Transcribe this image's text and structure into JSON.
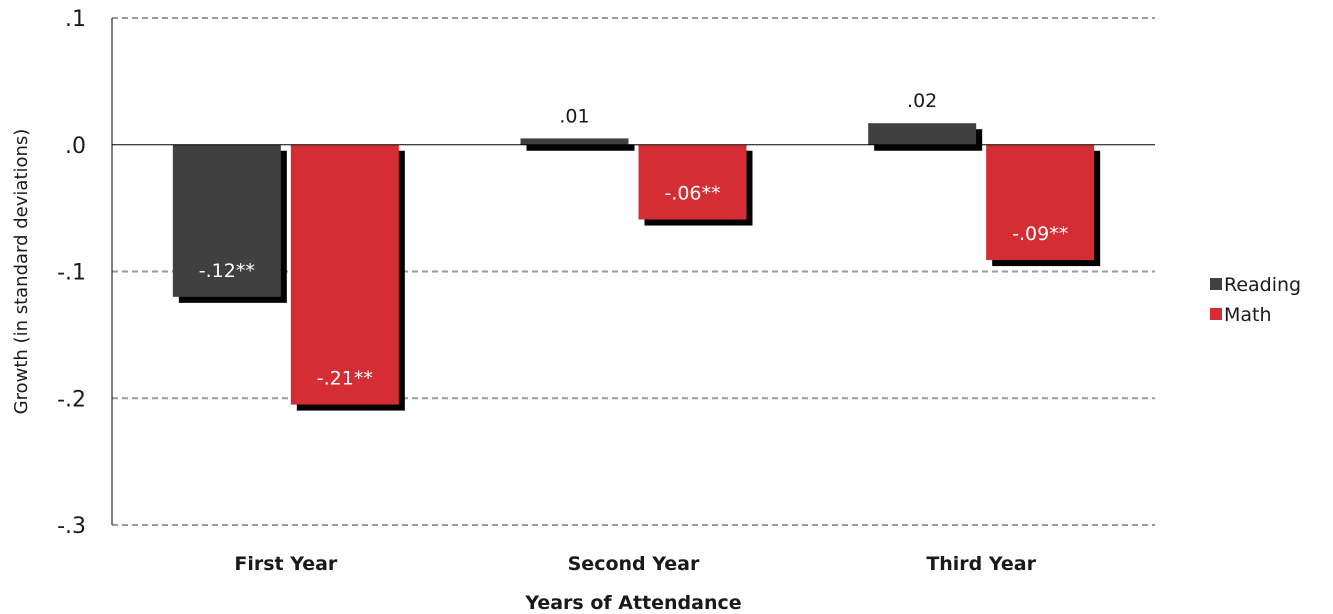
{
  "chart_data": {
    "type": "bar",
    "title": "",
    "xlabel": "Years of Attendance",
    "ylabel": "Growth (in standard deviations)",
    "categories": [
      "First Year",
      "Second Year",
      "Third Year"
    ],
    "series": [
      {
        "name": "Reading",
        "color": "#404040",
        "values": [
          -0.12,
          0.005,
          0.017
        ],
        "labels": [
          "-.12**",
          ".01",
          ".02"
        ]
      },
      {
        "name": "Math",
        "color": "#d42e34",
        "values": [
          -0.205,
          -0.059,
          -0.091
        ],
        "labels": [
          "-.21**",
          "-.06**",
          "-.09**"
        ]
      }
    ],
    "ylim": [
      -0.3,
      0.1
    ],
    "yticks": [
      0.1,
      0.0,
      -0.1,
      -0.2,
      -0.3
    ],
    "ytick_labels": [
      ".1",
      ".0",
      "-.1",
      "-.2",
      "-.3"
    ],
    "grid": "dashed horizontal",
    "legend_position": "right"
  }
}
